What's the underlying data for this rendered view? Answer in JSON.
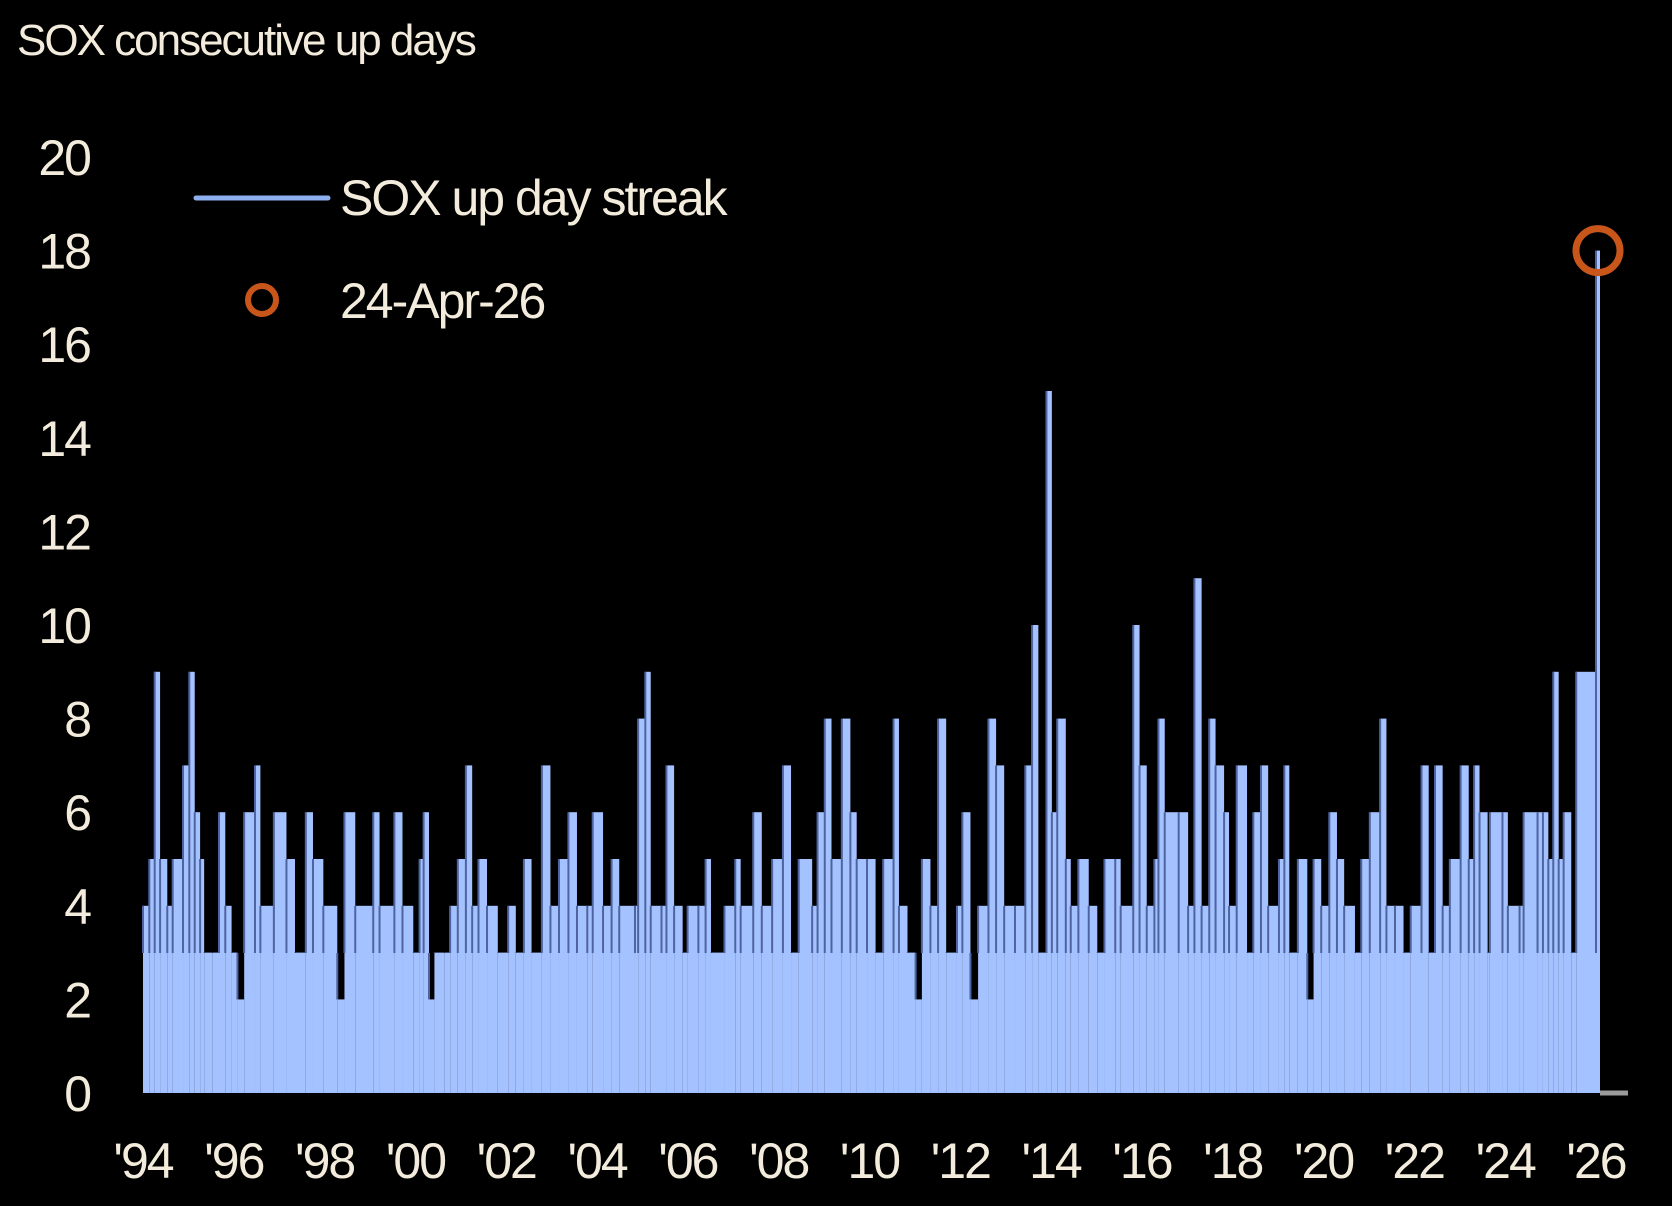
{
  "chart_data": {
    "type": "area",
    "title": "SOX consecutive up days",
    "xlabel": "",
    "ylabel": "",
    "ylim": [
      0,
      20
    ],
    "xlim": [
      1994,
      2026.6
    ],
    "y_ticks": [
      "0",
      "2",
      "4",
      "6",
      "8",
      "10",
      "12",
      "14",
      "16",
      "18",
      "20"
    ],
    "x_ticks": [
      {
        "year": 1994,
        "label": "'94"
      },
      {
        "year": 1996,
        "label": "'96"
      },
      {
        "year": 1998,
        "label": "'98"
      },
      {
        "year": 2000,
        "label": "'00"
      },
      {
        "year": 2002,
        "label": "'02"
      },
      {
        "year": 2004,
        "label": "'04"
      },
      {
        "year": 2006,
        "label": "'06"
      },
      {
        "year": 2008,
        "label": "'08"
      },
      {
        "year": 2010,
        "label": "'10"
      },
      {
        "year": 2012,
        "label": "'12"
      },
      {
        "year": 2014,
        "label": "'14"
      },
      {
        "year": 2016,
        "label": "'16"
      },
      {
        "year": 2018,
        "label": "'18"
      },
      {
        "year": 2020,
        "label": "'20"
      },
      {
        "year": 2022,
        "label": "'22"
      },
      {
        "year": 2024,
        "label": "'24"
      },
      {
        "year": 2026,
        "label": "'26"
      }
    ],
    "grid": false,
    "legend_position": "top-left",
    "series": [
      {
        "name": "SOX up day streak",
        "color": "#a4c2ff",
        "x": [
          1994.0,
          1994.14,
          1994.26,
          1994.38,
          1994.54,
          1994.66,
          1994.89,
          1995.03,
          1995.15,
          1995.27,
          1995.36,
          1995.55,
          1995.69,
          1995.83,
          1995.97,
          1996.1,
          1996.25,
          1996.49,
          1996.61,
          1996.91,
          1997.19,
          1997.38,
          1997.62,
          1997.78,
          1998.01,
          1998.32,
          1998.48,
          1998.72,
          1999.12,
          1999.26,
          1999.59,
          1999.77,
          2000.01,
          2000.15,
          2000.24,
          2000.36,
          2000.48,
          2000.71,
          2000.83,
          2001.0,
          2001.18,
          2001.32,
          2001.46,
          2001.65,
          2001.89,
          2002.12,
          2002.29,
          2002.47,
          2002.64,
          2002.87,
          2003.06,
          2003.25,
          2003.46,
          2003.65,
          2003.88,
          2004.0,
          2004.23,
          2004.42,
          2004.59,
          2004.94,
          2005.01,
          2005.17,
          2005.29,
          2005.53,
          2005.64,
          2005.81,
          2006.0,
          2006.11,
          2006.35,
          2006.51,
          2006.63,
          2006.93,
          2007.17,
          2007.29,
          2007.57,
          2007.76,
          2007.99,
          2008.23,
          2008.41,
          2008.58,
          2008.88,
          2009.0,
          2009.16,
          2009.31,
          2009.54,
          2009.73,
          2009.87,
          2010.1,
          2010.29,
          2010.46,
          2010.69,
          2010.81,
          2011.0,
          2011.18,
          2011.32,
          2011.51,
          2011.68,
          2011.86,
          2012.1,
          2012.22,
          2012.4,
          2012.57,
          2012.8,
          2012.97,
          2013.15,
          2013.39,
          2013.62,
          2013.77,
          2013.91,
          2014.09,
          2014.21,
          2014.33,
          2014.52,
          2014.63,
          2014.8,
          2015.03,
          2015.22,
          2015.38,
          2015.62,
          2015.74,
          2016.02,
          2016.16,
          2016.32,
          2016.49,
          2016.58,
          2016.72,
          2017.03,
          2017.24,
          2017.38,
          2017.54,
          2017.71,
          2017.85,
          2018.04,
          2018.15,
          2018.32,
          2018.55,
          2018.69,
          2018.86,
          2019.02,
          2019.26,
          2019.38,
          2019.49,
          2019.68,
          2019.89,
          2020.03,
          2020.2,
          2020.38,
          2020.55,
          2020.71,
          2020.95,
          2021.09,
          2021.28,
          2021.51,
          2021.65,
          2021.84,
          2022.03,
          2022.19,
          2022.43,
          2022.59,
          2022.73,
          2022.9,
          2023.06,
          2023.3,
          2023.48,
          2023.6,
          2023.72,
          2023.9,
          2023.95,
          2024.23,
          2024.35,
          2024.61,
          2024.7,
          2025.01,
          2025.13,
          2025.25,
          2025.36,
          2025.48,
          2025.59,
          2025.76,
          2025.87,
          2026.31
        ],
        "values": [
          4,
          5,
          9,
          5,
          4,
          5,
          7,
          9,
          6,
          5,
          3,
          3,
          6,
          4,
          3,
          2,
          6,
          7,
          4,
          6,
          5,
          3,
          6,
          5,
          4,
          2,
          6,
          4,
          6,
          4,
          6,
          4,
          3,
          5,
          6,
          2,
          3,
          3,
          4,
          5,
          7,
          4,
          5,
          4,
          3,
          4,
          3,
          5,
          3,
          7,
          4,
          5,
          6,
          4,
          4,
          6,
          4,
          5,
          4,
          4,
          8,
          9,
          4,
          4,
          7,
          4,
          3,
          4,
          4,
          5,
          3,
          4,
          5,
          4,
          6,
          4,
          5,
          7,
          3,
          5,
          4,
          6,
          8,
          5,
          8,
          6,
          5,
          5,
          3,
          5,
          8,
          4,
          3,
          2,
          5,
          4,
          8,
          3,
          4,
          6,
          2,
          4,
          8,
          7,
          4,
          4,
          7,
          10,
          3,
          15,
          6,
          8,
          5,
          4,
          5,
          4,
          3,
          5,
          5,
          4,
          10,
          7,
          4,
          5,
          8,
          6,
          6,
          4,
          11,
          4,
          8,
          7,
          6,
          4,
          7,
          3,
          6,
          7,
          4,
          5,
          7,
          3,
          5,
          2,
          5,
          4,
          6,
          5,
          4,
          3,
          5,
          6,
          8,
          4,
          4,
          3,
          4,
          7,
          3,
          7,
          4,
          5,
          7,
          5,
          7,
          6,
          3,
          6,
          6,
          4,
          4,
          6,
          6,
          6,
          5,
          9,
          5,
          6,
          3,
          9,
          18
        ]
      }
    ],
    "legend": [
      {
        "label": "SOX up day streak",
        "kind": "line",
        "color": "#8fb0f0"
      },
      {
        "label": "24-Apr-26",
        "kind": "circle-marker",
        "color": "#c8561a"
      }
    ],
    "annotation": {
      "label": "24-Apr-26",
      "year": 2026.31,
      "value": 18,
      "color": "#c8561a"
    }
  }
}
